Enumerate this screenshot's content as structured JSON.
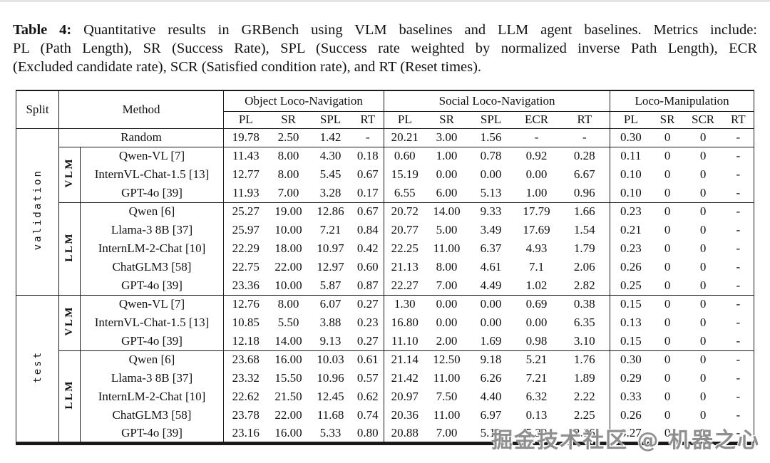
{
  "caption": {
    "label": "Table 4:",
    "line1": "Quantitative results in GRBench using VLM baselines and LLM agent baselines. Metrics include:",
    "line2": "PL (Path Length), SR (Success Rate), SPL (Success rate weighted by normalized inverse Path Length), ECR",
    "line3": "(Excluded candidate rate), SCR (Satisfied condition rate), and RT (Reset times)."
  },
  "table": {
    "header": {
      "split": "Split",
      "method": "Method",
      "groups": [
        {
          "label": "Object Loco-Navigation",
          "metrics": [
            "PL",
            "SR",
            "SPL",
            "RT"
          ]
        },
        {
          "label": "Social Loco-Navigation",
          "metrics": [
            "PL",
            "SR",
            "SPL",
            "ECR",
            "RT"
          ]
        },
        {
          "label": "Loco-Manipulation",
          "metrics": [
            "PL",
            "SR",
            "SCR",
            "RT"
          ]
        }
      ]
    },
    "random": {
      "method": "Random",
      "values": [
        "19.78",
        "2.50",
        "1.42",
        "-",
        "20.21",
        "3.00",
        "1.56",
        "-",
        "-",
        "0.30",
        "0",
        "0",
        "-"
      ]
    },
    "sections": [
      {
        "split": "validation",
        "groups": [
          {
            "label": "VLM",
            "rows": [
              {
                "method": "Qwen-VL [7]",
                "values": [
                  "11.43",
                  "8.00",
                  "4.30",
                  "0.18",
                  "0.60",
                  "1.00",
                  "0.78",
                  "0.92",
                  "0.28",
                  "0.11",
                  "0",
                  "0",
                  "-"
                ]
              },
              {
                "method": "InternVL-Chat-1.5 [13]",
                "values": [
                  "12.77",
                  "8.00",
                  "5.45",
                  "0.67",
                  "15.19",
                  "0.00",
                  "0.00",
                  "0.00",
                  "6.67",
                  "0.10",
                  "0",
                  "0",
                  "-"
                ]
              },
              {
                "method": "GPT-4o [39]",
                "values": [
                  "11.93",
                  "7.00",
                  "3.28",
                  "0.17",
                  "6.55",
                  "6.00",
                  "5.13",
                  "1.00",
                  "0.96",
                  "0.10",
                  "0",
                  "0",
                  "-"
                ]
              }
            ]
          },
          {
            "label": "LLM",
            "rows": [
              {
                "method": "Qwen [6]",
                "values": [
                  "25.27",
                  "19.00",
                  "12.86",
                  "0.67",
                  "20.72",
                  "14.00",
                  "9.33",
                  "17.79",
                  "1.66",
                  "0.23",
                  "0",
                  "0",
                  "-"
                ]
              },
              {
                "method": "Llama-3 8B [37]",
                "values": [
                  "25.97",
                  "10.00",
                  "7.21",
                  "0.84",
                  "20.77",
                  "5.00",
                  "3.49",
                  "17.69",
                  "1.54",
                  "0.21",
                  "0",
                  "0",
                  "-"
                ]
              },
              {
                "method": "InternLM-2-Chat [10]",
                "values": [
                  "22.29",
                  "18.00",
                  "10.97",
                  "0.42",
                  "22.25",
                  "11.00",
                  "6.37",
                  "4.93",
                  "1.79",
                  "0.23",
                  "0",
                  "0",
                  "-"
                ]
              },
              {
                "method": "ChatGLM3 [58]",
                "values": [
                  "22.75",
                  "22.00",
                  "12.97",
                  "0.60",
                  "21.13",
                  "8.00",
                  "4.61",
                  "7.1",
                  "2.06",
                  "0.26",
                  "0",
                  "0",
                  "-"
                ]
              },
              {
                "method": "GPT-4o [39]",
                "values": [
                  "23.36",
                  "10.00",
                  "5.87",
                  "0.87",
                  "22.27",
                  "7.00",
                  "4.49",
                  "1.02",
                  "2.82",
                  "0.25",
                  "0",
                  "0",
                  "-"
                ]
              }
            ]
          }
        ]
      },
      {
        "split": "test",
        "groups": [
          {
            "label": "VLM",
            "rows": [
              {
                "method": "Qwen-VL [7]",
                "values": [
                  "12.76",
                  "8.00",
                  "6.07",
                  "0.27",
                  "1.30",
                  "0.00",
                  "0.00",
                  "0.69",
                  "0.38",
                  "0.15",
                  "0",
                  "0",
                  "-"
                ]
              },
              {
                "method": "InternVL-Chat-1.5 [13]",
                "values": [
                  "10.85",
                  "5.50",
                  "3.88",
                  "0.23",
                  "16.80",
                  "0.00",
                  "0.00",
                  "0.00",
                  "6.35",
                  "0.13",
                  "0",
                  "0",
                  "-"
                ]
              },
              {
                "method": "GPT-4o [39]",
                "values": [
                  "12.18",
                  "14.00",
                  "9.13",
                  "0.27",
                  "11.10",
                  "2.00",
                  "1.69",
                  "0.98",
                  "3.10",
                  "0.15",
                  "0",
                  "0",
                  "-"
                ]
              }
            ]
          },
          {
            "label": "LLM",
            "rows": [
              {
                "method": "Qwen [6]",
                "values": [
                  "23.68",
                  "16.00",
                  "10.03",
                  "0.61",
                  "21.14",
                  "12.50",
                  "9.18",
                  "5.21",
                  "1.76",
                  "0.30",
                  "0",
                  "0",
                  "-"
                ]
              },
              {
                "method": "Llama-3 8B [37]",
                "values": [
                  "23.32",
                  "15.50",
                  "10.96",
                  "0.57",
                  "21.42",
                  "11.00",
                  "6.26",
                  "7.21",
                  "1.89",
                  "0.29",
                  "0",
                  "0",
                  "-"
                ]
              },
              {
                "method": "InternLM-2-Chat [10]",
                "values": [
                  "22.62",
                  "21.50",
                  "12.45",
                  "0.62",
                  "20.97",
                  "7.50",
                  "4.40",
                  "6.32",
                  "2.22",
                  "0.33",
                  "0",
                  "0",
                  "-"
                ]
              },
              {
                "method": "ChatGLM3 [58]",
                "values": [
                  "23.78",
                  "22.00",
                  "11.68",
                  "0.74",
                  "20.36",
                  "11.00",
                  "6.97",
                  "0.13",
                  "2.25",
                  "0.26",
                  "0",
                  "0",
                  "-"
                ]
              },
              {
                "method": "GPT-4o [39]",
                "values": [
                  "23.16",
                  "16.00",
                  "5.33",
                  "0.80",
                  "20.88",
                  "7.00",
                  "5.10",
                  "5.39",
                  "2.16",
                  "0.27",
                  "0",
                  "0",
                  "-"
                ]
              }
            ]
          }
        ]
      }
    ]
  },
  "watermark": {
    "text": "掘金技术社区 @ 机器之心",
    "color": "#8f8f8f"
  },
  "colors": {
    "table_border": "#1a1a1a",
    "text": "#111111",
    "background": "#ffffff"
  }
}
